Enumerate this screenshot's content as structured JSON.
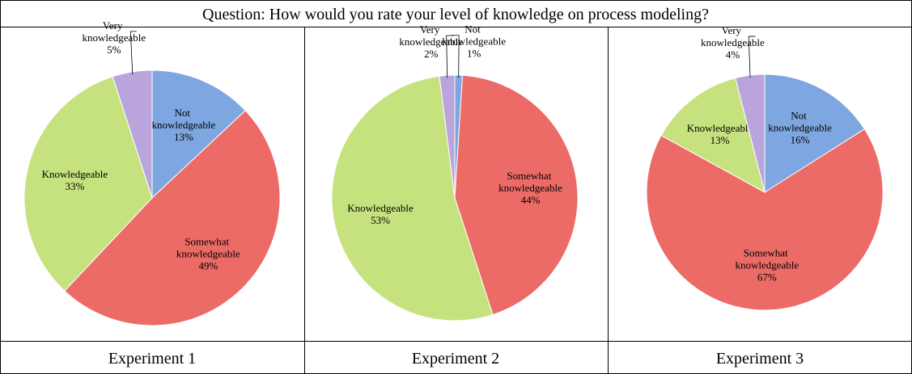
{
  "question": "Question: How would you rate your level of knowledge on process modeling?",
  "chart_data": [
    {
      "type": "pie",
      "title": "Experiment 1",
      "categories": [
        "Not knowledgeable",
        "Somewhat knowledgeable",
        "Knowledgeable",
        "Very knowledgeable"
      ],
      "values": [
        13,
        49,
        33,
        5
      ],
      "value_labels": [
        "13%",
        "49%",
        "33%",
        "5%"
      ],
      "colors": [
        "#7ea6e0",
        "#ec6b67",
        "#c6e27f",
        "#b9a5dc"
      ]
    },
    {
      "type": "pie",
      "title": "Experiment 2",
      "categories": [
        "Not knowledgeable",
        "Somewhat knowledgeable",
        "Knowledgeable",
        "Very knowledgeable"
      ],
      "values": [
        1,
        44,
        53,
        2
      ],
      "value_labels": [
        "1%",
        "44%",
        "53%",
        "2%"
      ],
      "colors": [
        "#7ea6e0",
        "#ec6b67",
        "#c6e27f",
        "#b9a5dc"
      ]
    },
    {
      "type": "pie",
      "title": "Experiment 3",
      "categories": [
        "Not knowledgeable",
        "Somewhat knowledgeable",
        "Knowledgeable",
        "Very knowledgeable"
      ],
      "values": [
        16,
        67,
        13,
        4
      ],
      "value_labels": [
        "16%",
        "67%",
        "13%",
        "4%"
      ],
      "colors": [
        "#7ea6e0",
        "#ec6b67",
        "#c6e27f",
        "#b9a5dc"
      ]
    }
  ]
}
